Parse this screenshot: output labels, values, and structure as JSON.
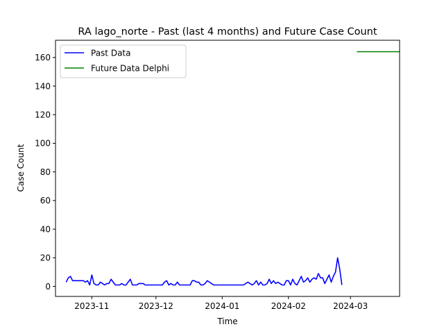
{
  "chart_data": {
    "type": "line",
    "title": "RA lago_norte - Past (last 4 months) and Future Case Count",
    "xlabel": "Time",
    "ylabel": "Case Count",
    "xlim": [
      "2023-10-15",
      "2024-03-24"
    ],
    "ylim": [
      -7,
      172
    ],
    "x_ticks": [
      {
        "date": "2023-11-01",
        "label": "2023-11"
      },
      {
        "date": "2023-12-01",
        "label": "2023-12"
      },
      {
        "date": "2024-01-01",
        "label": "2024-01"
      },
      {
        "date": "2024-02-01",
        "label": "2024-02"
      },
      {
        "date": "2024-03-01",
        "label": "2024-03"
      }
    ],
    "y_ticks": [
      0,
      20,
      40,
      60,
      80,
      100,
      120,
      140,
      160
    ],
    "legend": {
      "placement": "top-left"
    },
    "grid": false,
    "series": [
      {
        "name": "Past Data",
        "color": "#0000ff",
        "points": [
          [
            "2023-10-20",
            3
          ],
          [
            "2023-10-21",
            6
          ],
          [
            "2023-10-22",
            7
          ],
          [
            "2023-10-23",
            4
          ],
          [
            "2023-10-24",
            4
          ],
          [
            "2023-10-25",
            4
          ],
          [
            "2023-10-26",
            4
          ],
          [
            "2023-10-27",
            4
          ],
          [
            "2023-10-28",
            4
          ],
          [
            "2023-10-29",
            3
          ],
          [
            "2023-10-30",
            4
          ],
          [
            "2023-10-31",
            1
          ],
          [
            "2023-11-01",
            8
          ],
          [
            "2023-11-02",
            2
          ],
          [
            "2023-11-03",
            1
          ],
          [
            "2023-11-04",
            1
          ],
          [
            "2023-11-05",
            3
          ],
          [
            "2023-11-06",
            2
          ],
          [
            "2023-11-07",
            1
          ],
          [
            "2023-11-08",
            2
          ],
          [
            "2023-11-09",
            2
          ],
          [
            "2023-11-10",
            5
          ],
          [
            "2023-11-11",
            3
          ],
          [
            "2023-11-12",
            1
          ],
          [
            "2023-11-13",
            1
          ],
          [
            "2023-11-14",
            1
          ],
          [
            "2023-11-15",
            2
          ],
          [
            "2023-11-16",
            1
          ],
          [
            "2023-11-17",
            1
          ],
          [
            "2023-11-18",
            3
          ],
          [
            "2023-11-19",
            5
          ],
          [
            "2023-11-20",
            1
          ],
          [
            "2023-11-21",
            1
          ],
          [
            "2023-11-22",
            1
          ],
          [
            "2023-11-23",
            2
          ],
          [
            "2023-11-24",
            2
          ],
          [
            "2023-11-25",
            2
          ],
          [
            "2023-11-26",
            1
          ],
          [
            "2023-11-27",
            1
          ],
          [
            "2023-11-28",
            1
          ],
          [
            "2023-11-29",
            1
          ],
          [
            "2023-11-30",
            1
          ],
          [
            "2023-12-01",
            1
          ],
          [
            "2023-12-02",
            1
          ],
          [
            "2023-12-03",
            1
          ],
          [
            "2023-12-04",
            1
          ],
          [
            "2023-12-05",
            3
          ],
          [
            "2023-12-06",
            4
          ],
          [
            "2023-12-07",
            1
          ],
          [
            "2023-12-08",
            2
          ],
          [
            "2023-12-09",
            1
          ],
          [
            "2023-12-10",
            1
          ],
          [
            "2023-12-11",
            3
          ],
          [
            "2023-12-12",
            1
          ],
          [
            "2023-12-13",
            1
          ],
          [
            "2023-12-14",
            1
          ],
          [
            "2023-12-15",
            1
          ],
          [
            "2023-12-16",
            1
          ],
          [
            "2023-12-17",
            1
          ],
          [
            "2023-12-18",
            4
          ],
          [
            "2023-12-19",
            4
          ],
          [
            "2023-12-20",
            3
          ],
          [
            "2023-12-21",
            3
          ],
          [
            "2023-12-22",
            1
          ],
          [
            "2023-12-23",
            1
          ],
          [
            "2023-12-24",
            2
          ],
          [
            "2023-12-25",
            4
          ],
          [
            "2023-12-26",
            3
          ],
          [
            "2023-12-27",
            2
          ],
          [
            "2023-12-28",
            1
          ],
          [
            "2023-12-29",
            1
          ],
          [
            "2023-12-30",
            1
          ],
          [
            "2023-12-31",
            1
          ],
          [
            "2024-01-01",
            1
          ],
          [
            "2024-01-02",
            1
          ],
          [
            "2024-01-03",
            1
          ],
          [
            "2024-01-04",
            1
          ],
          [
            "2024-01-05",
            1
          ],
          [
            "2024-01-06",
            1
          ],
          [
            "2024-01-07",
            1
          ],
          [
            "2024-01-08",
            1
          ],
          [
            "2024-01-09",
            1
          ],
          [
            "2024-01-10",
            1
          ],
          [
            "2024-01-11",
            1
          ],
          [
            "2024-01-12",
            2
          ],
          [
            "2024-01-13",
            3
          ],
          [
            "2024-01-14",
            2
          ],
          [
            "2024-01-15",
            1
          ],
          [
            "2024-01-16",
            2
          ],
          [
            "2024-01-17",
            4
          ],
          [
            "2024-01-18",
            1
          ],
          [
            "2024-01-19",
            3
          ],
          [
            "2024-01-20",
            1
          ],
          [
            "2024-01-21",
            1
          ],
          [
            "2024-01-22",
            2
          ],
          [
            "2024-01-23",
            5
          ],
          [
            "2024-01-24",
            2
          ],
          [
            "2024-01-25",
            4
          ],
          [
            "2024-01-26",
            2
          ],
          [
            "2024-01-27",
            3
          ],
          [
            "2024-01-28",
            2
          ],
          [
            "2024-01-29",
            1
          ],
          [
            "2024-01-30",
            1
          ],
          [
            "2024-01-31",
            4
          ],
          [
            "2024-02-01",
            4
          ],
          [
            "2024-02-02",
            1
          ],
          [
            "2024-02-03",
            5
          ],
          [
            "2024-02-04",
            2
          ],
          [
            "2024-02-05",
            1
          ],
          [
            "2024-02-06",
            4
          ],
          [
            "2024-02-07",
            7
          ],
          [
            "2024-02-08",
            3
          ],
          [
            "2024-02-09",
            4
          ],
          [
            "2024-02-10",
            6
          ],
          [
            "2024-02-11",
            3
          ],
          [
            "2024-02-12",
            5
          ],
          [
            "2024-02-13",
            6
          ],
          [
            "2024-02-14",
            5
          ],
          [
            "2024-02-15",
            9
          ],
          [
            "2024-02-16",
            6
          ],
          [
            "2024-02-17",
            6
          ],
          [
            "2024-02-18",
            2
          ],
          [
            "2024-02-19",
            5
          ],
          [
            "2024-02-20",
            8
          ],
          [
            "2024-02-21",
            3
          ],
          [
            "2024-02-22",
            7
          ],
          [
            "2024-02-23",
            10
          ],
          [
            "2024-02-24",
            20
          ],
          [
            "2024-02-25",
            12
          ],
          [
            "2024-02-26",
            1
          ]
        ]
      },
      {
        "name": "Future Data Delphi",
        "color": "#008000",
        "points": [
          [
            "2024-03-04",
            164
          ],
          [
            "2024-03-24",
            164
          ]
        ]
      }
    ]
  }
}
